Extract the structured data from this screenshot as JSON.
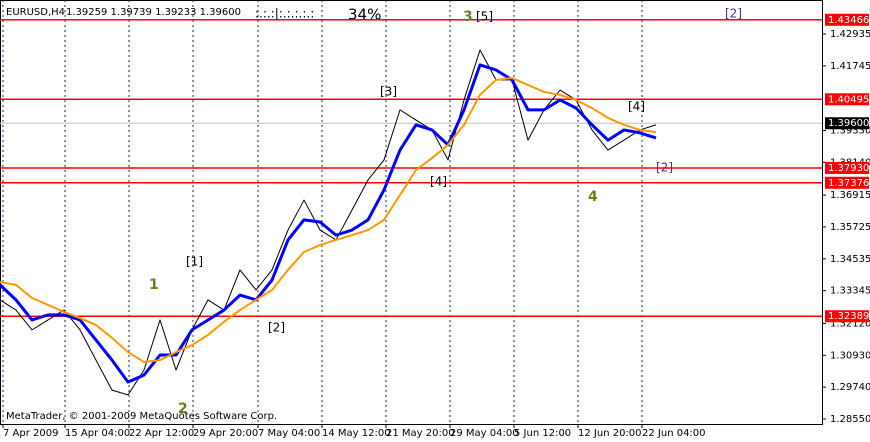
{
  "chart_data": {
    "type": "line",
    "title": "EURUSD,H4",
    "ohlc_label": "1.39259 1.39739 1.39233 1.39600",
    "indicator": ":.:.:|:.:.:.:.:",
    "percent": "34%",
    "copyright": "MetaTrader, © 2001-2009 MetaQuotes Software Corp.",
    "xlim": [
      0,
      411
    ],
    "ylim": [
      1.28363,
      1.44205
    ],
    "xticks": [
      {
        "value": 1.5,
        "label": "7 Apr 2009"
      },
      {
        "value": 32.5,
        "label": "15 Apr 04:00"
      },
      {
        "value": 64.5,
        "label": "22 Apr 12:00"
      },
      {
        "value": 96.5,
        "label": "29 Apr 20:00"
      },
      {
        "value": 129,
        "label": "7 May 04:00"
      },
      {
        "value": 161,
        "label": "14 May 12:00"
      },
      {
        "value": 193,
        "label": "21 May 20:00"
      },
      {
        "value": 225,
        "label": "29 May 04:00"
      },
      {
        "value": 257,
        "label": "5 Jun 12:00"
      },
      {
        "value": 289,
        "label": "12 Jun 20:00"
      },
      {
        "value": 321,
        "label": "22 Jun 04:00"
      }
    ],
    "yticks": [
      1.42935,
      1.41745,
      {
        "value": 1.3933,
        "label": "1.39330"
      },
      {
        "value": 1.3814,
        "label": "1.38140"
      },
      1.36915,
      1.35725,
      1.34535,
      1.33345,
      {
        "value": 1.3212,
        "label": "1.32120"
      },
      {
        "value": 1.3093,
        "label": "1.30930"
      },
      {
        "value": 1.2974,
        "label": "1.29740"
      },
      {
        "value": 1.2855,
        "label": "1.28550"
      }
    ],
    "grid": true,
    "levels": [
      1.43466,
      1.40495,
      {
        "value": 1.3793,
        "label": "1.37930"
      },
      1.37376,
      1.32389
    ],
    "level_color": "#ff0000",
    "current_price": {
      "value": 1.396,
      "label": "1.39600"
    },
    "x": [
      0,
      8,
      16,
      24,
      32,
      40,
      48,
      56,
      64,
      72,
      80,
      88,
      96,
      104,
      112,
      120,
      128,
      136,
      144,
      152,
      160,
      168,
      176,
      184,
      192,
      200,
      208,
      216,
      224,
      232,
      240,
      248,
      256,
      264,
      272,
      280,
      288,
      296,
      304,
      312,
      320,
      328
    ],
    "series": [
      {
        "color": "#000000",
        "width": 1,
        "values": [
          1.33,
          1.3262,
          1.3188,
          1.3225,
          1.3262,
          1.3188,
          1.3075,
          1.2963,
          1.2945,
          1.3038,
          1.3225,
          1.3038,
          1.3188,
          1.33,
          1.3262,
          1.3412,
          1.3337,
          1.3412,
          1.3561,
          1.3673,
          1.3561,
          1.3524,
          1.3636,
          1.3748,
          1.3823,
          1.401,
          1.3972,
          1.3935,
          1.3823,
          1.4047,
          1.4234,
          1.4122,
          1.4122,
          1.3897,
          1.401,
          1.4084,
          1.4047,
          1.3935,
          1.386,
          1.3897,
          1.3935,
          1.3954
        ]
      },
      {
        "color": "#0000ff",
        "width": 3,
        "values": [
          1.3356,
          1.33,
          1.3225,
          1.3244,
          1.3244,
          1.3225,
          1.315,
          1.3075,
          1.2993,
          1.3019,
          1.3094,
          1.3094,
          1.3188,
          1.3225,
          1.3262,
          1.3318,
          1.33,
          1.3374,
          1.3524,
          1.3599,
          1.3591,
          1.3542,
          1.3561,
          1.3599,
          1.3711,
          1.386,
          1.3954,
          1.3935,
          1.3879,
          1.401,
          1.4178,
          1.4159,
          1.4122,
          1.401,
          1.401,
          1.4047,
          1.4017,
          1.3954,
          1.3897,
          1.3935,
          1.3924,
          1.3905
        ]
      },
      {
        "color": "#ff9900",
        "width": 2,
        "values": [
          1.3367,
          1.3356,
          1.3307,
          1.3281,
          1.3255,
          1.3232,
          1.3206,
          1.3158,
          1.3105,
          1.3068,
          1.3075,
          1.3105,
          1.3131,
          1.3169,
          1.3218,
          1.3262,
          1.33,
          1.3337,
          1.3412,
          1.3479,
          1.3505,
          1.3524,
          1.3542,
          1.3561,
          1.3599,
          1.3692,
          1.3785,
          1.383,
          1.3879,
          1.3954,
          1.4066,
          1.4122,
          1.4129,
          1.4103,
          1.4077,
          1.4066,
          1.4047,
          1.4017,
          1.398,
          1.3954,
          1.3935,
          1.3927
        ]
      }
    ],
    "annotations": [
      {
        "text": "[1]",
        "color": "#000000"
      },
      {
        "text": "1",
        "color": "#6b7d1e"
      },
      {
        "text": "2",
        "color": "#6b7d1e"
      },
      {
        "text": "[2]",
        "color": "#000000"
      },
      {
        "text": "[3]",
        "color": "#000000"
      },
      {
        "text": "[4]",
        "color": "#000000"
      },
      {
        "text": "3",
        "color": "#6b7d1e"
      },
      {
        "text": "[5]",
        "color": "#000000"
      },
      {
        "text": "4",
        "color": "#6b7d1e"
      },
      {
        "text": "[4]",
        "color": "#000000"
      },
      {
        "text": "[2]",
        "color": "#5a2a8a"
      },
      {
        "text": "[2]",
        "color": "#5a2a8a"
      }
    ]
  }
}
